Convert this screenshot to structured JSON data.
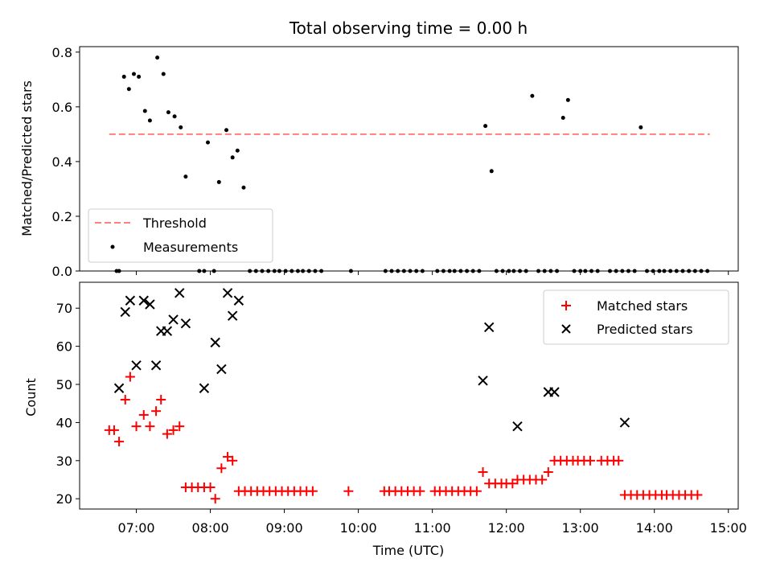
{
  "chart_data": [
    {
      "type": "scatter",
      "title": "Total observing time = 0.00 h",
      "xlabel": "",
      "ylabel": "Matched/Predicted stars",
      "xlim": [
        "06:14",
        "15:08"
      ],
      "ylim": [
        0,
        0.82
      ],
      "yticks": [
        "0.0",
        "0.2",
        "0.4",
        "0.6",
        "0.8"
      ],
      "xtick_values": [
        "07:00",
        "08:00",
        "09:00",
        "10:00",
        "11:00",
        "12:00",
        "13:00",
        "14:00",
        "15:00"
      ],
      "legend_position": "lower-left",
      "grid": false,
      "threshold": {
        "name": "Threshold",
        "y": 0.5,
        "x_start": "06:38",
        "x_end": "14:45",
        "color": "#ff7f7f"
      },
      "series": [
        {
          "name": "Measurements",
          "color": "#000000",
          "points": [
            [
              "06:44",
              0.0
            ],
            [
              "06:46",
              0.0
            ],
            [
              "06:50",
              0.71
            ],
            [
              "06:54",
              0.665
            ],
            [
              "06:58",
              0.72
            ],
            [
              "07:02",
              0.71
            ],
            [
              "07:07",
              0.585
            ],
            [
              "07:11",
              0.55
            ],
            [
              "07:17",
              0.78
            ],
            [
              "07:22",
              0.72
            ],
            [
              "07:26",
              0.58
            ],
            [
              "07:31",
              0.565
            ],
            [
              "07:36",
              0.525
            ],
            [
              "07:40",
              0.345
            ],
            [
              "07:51",
              0.0
            ],
            [
              "07:55",
              0.0
            ],
            [
              "07:58",
              0.47
            ],
            [
              "08:03",
              0.0
            ],
            [
              "08:07",
              0.325
            ],
            [
              "08:13",
              0.515
            ],
            [
              "08:18",
              0.415
            ],
            [
              "08:22",
              0.44
            ],
            [
              "08:27",
              0.305
            ],
            [
              "08:32",
              0.0
            ],
            [
              "08:37",
              0.0
            ],
            [
              "08:42",
              0.0
            ],
            [
              "08:47",
              0.0
            ],
            [
              "08:52",
              0.0
            ],
            [
              "08:56",
              0.0
            ],
            [
              "09:01",
              0.0
            ],
            [
              "09:06",
              0.0
            ],
            [
              "09:11",
              0.0
            ],
            [
              "09:15",
              0.0
            ],
            [
              "09:20",
              0.0
            ],
            [
              "09:25",
              0.0
            ],
            [
              "09:30",
              0.0
            ],
            [
              "09:54",
              0.0
            ],
            [
              "10:22",
              0.0
            ],
            [
              "10:27",
              0.0
            ],
            [
              "10:32",
              0.0
            ],
            [
              "10:37",
              0.0
            ],
            [
              "10:42",
              0.0
            ],
            [
              "10:47",
              0.0
            ],
            [
              "10:52",
              0.0
            ],
            [
              "11:04",
              0.0
            ],
            [
              "11:09",
              0.0
            ],
            [
              "11:14",
              0.0
            ],
            [
              "11:18",
              0.0
            ],
            [
              "11:23",
              0.0
            ],
            [
              "11:28",
              0.0
            ],
            [
              "11:33",
              0.0
            ],
            [
              "11:38",
              0.0
            ],
            [
              "11:43",
              0.53
            ],
            [
              "11:48",
              0.365
            ],
            [
              "11:52",
              0.0
            ],
            [
              "11:57",
              0.0
            ],
            [
              "12:02",
              0.0
            ],
            [
              "12:06",
              0.0
            ],
            [
              "12:11",
              0.0
            ],
            [
              "12:16",
              0.0
            ],
            [
              "12:21",
              0.64
            ],
            [
              "12:26",
              0.0
            ],
            [
              "12:31",
              0.0
            ],
            [
              "12:36",
              0.0
            ],
            [
              "12:41",
              0.0
            ],
            [
              "12:46",
              0.56
            ],
            [
              "12:50",
              0.625
            ],
            [
              "12:55",
              0.0
            ],
            [
              "13:00",
              0.0
            ],
            [
              "13:04",
              0.0
            ],
            [
              "13:09",
              0.0
            ],
            [
              "13:14",
              0.0
            ],
            [
              "13:24",
              0.0
            ],
            [
              "13:29",
              0.0
            ],
            [
              "13:34",
              0.0
            ],
            [
              "13:39",
              0.0
            ],
            [
              "13:44",
              0.0
            ],
            [
              "13:49",
              0.525
            ],
            [
              "13:54",
              0.0
            ],
            [
              "13:59",
              0.0
            ],
            [
              "14:04",
              0.0
            ],
            [
              "14:08",
              0.0
            ],
            [
              "14:13",
              0.0
            ],
            [
              "14:18",
              0.0
            ],
            [
              "14:23",
              0.0
            ],
            [
              "14:28",
              0.0
            ],
            [
              "14:33",
              0.0
            ],
            [
              "14:38",
              0.0
            ],
            [
              "14:43",
              0.0
            ]
          ]
        }
      ]
    },
    {
      "type": "scatter",
      "title": "",
      "xlabel": "Time (UTC)",
      "ylabel": "Count",
      "xlim": [
        "06:14",
        "15:08"
      ],
      "ylim": [
        17.3,
        76.8
      ],
      "yticks": [
        "20",
        "30",
        "40",
        "50",
        "60",
        "70"
      ],
      "xticks": [
        "07:00",
        "08:00",
        "09:00",
        "10:00",
        "11:00",
        "12:00",
        "13:00",
        "14:00",
        "15:00"
      ],
      "legend_position": "upper-right",
      "grid": false,
      "series": [
        {
          "name": "Matched stars",
          "marker": "+",
          "color": "#ff0000",
          "points": [
            [
              "06:38",
              38
            ],
            [
              "06:42",
              38
            ],
            [
              "06:46",
              35
            ],
            [
              "06:51",
              46
            ],
            [
              "06:55",
              52
            ],
            [
              "07:00",
              39
            ],
            [
              "07:06",
              42
            ],
            [
              "07:11",
              39
            ],
            [
              "07:16",
              43
            ],
            [
              "07:20",
              46
            ],
            [
              "07:25",
              37
            ],
            [
              "07:30",
              38
            ],
            [
              "07:35",
              39
            ],
            [
              "07:40",
              23
            ],
            [
              "07:45",
              23
            ],
            [
              "07:50",
              23
            ],
            [
              "07:55",
              23
            ],
            [
              "08:00",
              23
            ],
            [
              "08:04",
              20
            ],
            [
              "08:09",
              28
            ],
            [
              "08:14",
              31
            ],
            [
              "08:18",
              30
            ],
            [
              "08:23",
              22
            ],
            [
              "08:28",
              22
            ],
            [
              "08:33",
              22
            ],
            [
              "08:38",
              22
            ],
            [
              "08:43",
              22
            ],
            [
              "08:48",
              22
            ],
            [
              "08:53",
              22
            ],
            [
              "08:58",
              22
            ],
            [
              "09:03",
              22
            ],
            [
              "09:08",
              22
            ],
            [
              "09:13",
              22
            ],
            [
              "09:18",
              22
            ],
            [
              "09:23",
              22
            ],
            [
              "09:52",
              22
            ],
            [
              "10:21",
              22
            ],
            [
              "10:25",
              22
            ],
            [
              "10:30",
              22
            ],
            [
              "10:35",
              22
            ],
            [
              "10:40",
              22
            ],
            [
              "10:45",
              22
            ],
            [
              "10:50",
              22
            ],
            [
              "11:02",
              22
            ],
            [
              "11:06",
              22
            ],
            [
              "11:11",
              22
            ],
            [
              "11:16",
              22
            ],
            [
              "11:21",
              22
            ],
            [
              "11:26",
              22
            ],
            [
              "11:31",
              22
            ],
            [
              "11:36",
              22
            ],
            [
              "11:41",
              27
            ],
            [
              "11:46",
              24
            ],
            [
              "11:51",
              24
            ],
            [
              "11:56",
              24
            ],
            [
              "12:00",
              24
            ],
            [
              "12:05",
              24
            ],
            [
              "12:09",
              25
            ],
            [
              "12:14",
              25
            ],
            [
              "12:19",
              25
            ],
            [
              "12:24",
              25
            ],
            [
              "12:29",
              25
            ],
            [
              "12:34",
              27
            ],
            [
              "12:39",
              30
            ],
            [
              "12:44",
              30
            ],
            [
              "12:49",
              30
            ],
            [
              "12:54",
              30
            ],
            [
              "12:58",
              30
            ],
            [
              "13:03",
              30
            ],
            [
              "13:08",
              30
            ],
            [
              "13:17",
              30
            ],
            [
              "13:22",
              30
            ],
            [
              "13:27",
              30
            ],
            [
              "13:31",
              30
            ],
            [
              "13:36",
              21
            ],
            [
              "13:41",
              21
            ],
            [
              "13:46",
              21
            ],
            [
              "13:51",
              21
            ],
            [
              "13:56",
              21
            ],
            [
              "14:01",
              21
            ],
            [
              "14:06",
              21
            ],
            [
              "14:10",
              21
            ],
            [
              "14:15",
              21
            ],
            [
              "14:20",
              21
            ],
            [
              "14:25",
              21
            ],
            [
              "14:30",
              21
            ],
            [
              "14:35",
              21
            ]
          ]
        },
        {
          "name": "Predicted stars",
          "marker": "x",
          "color": "#000000",
          "points": [
            [
              "06:46",
              49
            ],
            [
              "06:51",
              69
            ],
            [
              "06:55",
              72
            ],
            [
              "07:00",
              55
            ],
            [
              "07:06",
              72
            ],
            [
              "07:11",
              71
            ],
            [
              "07:16",
              55
            ],
            [
              "07:20",
              64
            ],
            [
              "07:25",
              64
            ],
            [
              "07:30",
              67
            ],
            [
              "07:35",
              74
            ],
            [
              "07:40",
              66
            ],
            [
              "07:55",
              49
            ],
            [
              "08:04",
              61
            ],
            [
              "08:09",
              54
            ],
            [
              "08:14",
              74
            ],
            [
              "08:18",
              68
            ],
            [
              "08:23",
              72
            ],
            [
              "11:41",
              51
            ],
            [
              "11:46",
              65
            ],
            [
              "12:09",
              39
            ],
            [
              "12:34",
              48
            ],
            [
              "12:39",
              48
            ],
            [
              "13:36",
              40
            ]
          ]
        }
      ]
    }
  ]
}
